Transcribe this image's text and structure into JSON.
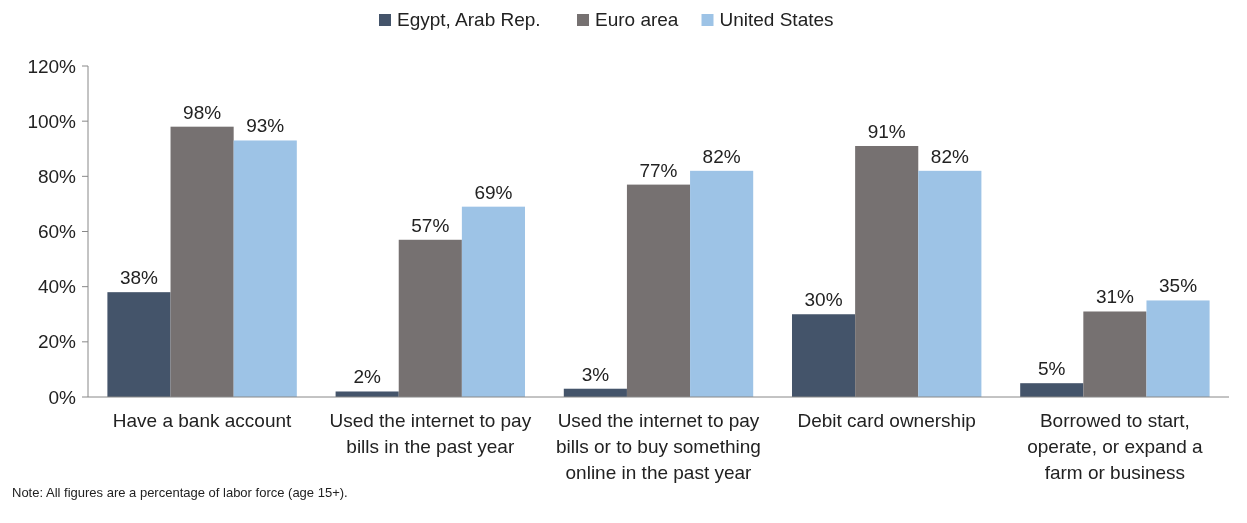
{
  "chart_data": {
    "type": "bar",
    "categories": [
      "Have a bank account",
      "Used the internet to pay bills in the past year",
      "Used the internet to pay bills or to buy something online in the past year",
      "Debit card ownership",
      "Borrowed to start, operate, or expand a farm or business"
    ],
    "series": [
      {
        "name": "Egypt, Arab Rep.",
        "color": "#44546a",
        "values": [
          38,
          2,
          3,
          30,
          5
        ],
        "value_labels": [
          "38%",
          "2%",
          "3%",
          "30%",
          "5%"
        ]
      },
      {
        "name": "Euro area",
        "color": "#767171",
        "values": [
          98,
          57,
          77,
          91,
          31
        ],
        "value_labels": [
          "98%",
          "57%",
          "77%",
          "91%",
          "31%"
        ]
      },
      {
        "name": "United States",
        "color": "#9dc3e6",
        "values": [
          93,
          69,
          82,
          82,
          35
        ],
        "value_labels": [
          "93%",
          "69%",
          "82%",
          "82%",
          "35%"
        ]
      }
    ],
    "ylim": [
      0,
      120
    ],
    "yticks": [
      {
        "value": 0,
        "label": "0%"
      },
      {
        "value": 20,
        "label": "20%"
      },
      {
        "value": 40,
        "label": "40%"
      },
      {
        "value": 60,
        "label": "60%"
      },
      {
        "value": 80,
        "label": "80%"
      },
      {
        "value": 100,
        "label": "100%"
      },
      {
        "value": 120,
        "label": "120%"
      }
    ],
    "grid": false,
    "legend": "top",
    "annotations": [
      "Note: All figures are a percentage of labor force (age 15+)."
    ]
  }
}
